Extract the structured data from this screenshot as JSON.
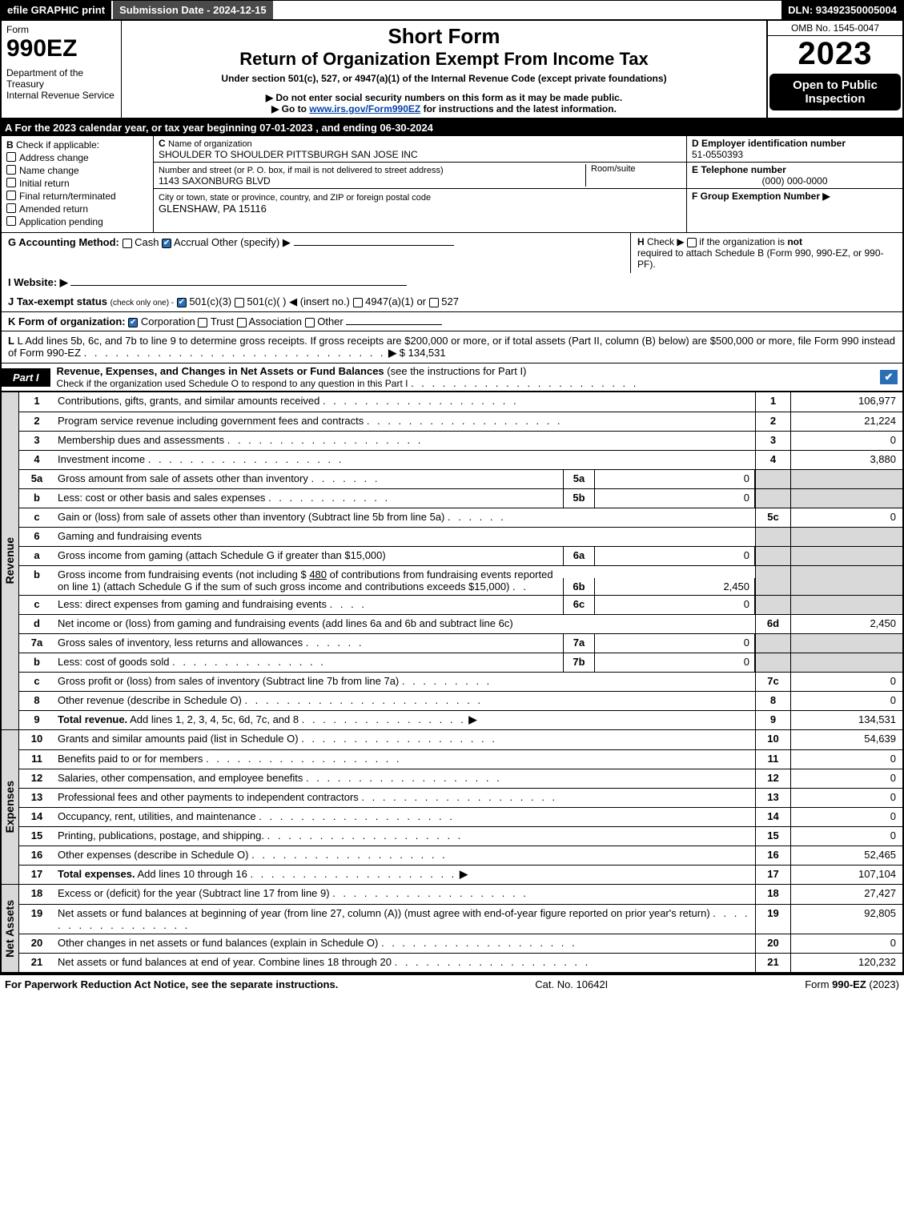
{
  "topbar": {
    "efile": "efile GRAPHIC print",
    "submission_label": "Submission Date - 2024-12-15",
    "dln": "DLN: 93492350005004"
  },
  "header": {
    "form_word": "Form",
    "form_no": "990EZ",
    "dept": "Department of the Treasury\nInternal Revenue Service",
    "title1": "Short Form",
    "title2": "Return of Organization Exempt From Income Tax",
    "subtitle": "Under section 501(c), 527, or 4947(a)(1) of the Internal Revenue Code (except private foundations)",
    "warn1": "▶ Do not enter social security numbers on this form as it may be made public.",
    "warn2_pre": "▶ Go to ",
    "warn2_link": "www.irs.gov/Form990EZ",
    "warn2_post": " for instructions and the latest information.",
    "omb": "OMB No. 1545-0047",
    "year": "2023",
    "open": "Open to Public Inspection"
  },
  "secA": "A  For the 2023 calendar year, or tax year beginning 07-01-2023  , and ending 06-30-2024",
  "boxB": {
    "label": "B",
    "sub": "Check if applicable:",
    "opts": [
      "Address change",
      "Name change",
      "Initial return",
      "Final return/terminated",
      "Amended return",
      "Application pending"
    ]
  },
  "boxC": {
    "c_label": "C",
    "c_sub": "Name of organization",
    "org": "SHOULDER TO SHOULDER PITTSBURGH SAN JOSE INC",
    "addr_label": "Number and street (or P. O. box, if mail is not delivered to street address)",
    "room": "Room/suite",
    "addr": "1143 SAXONBURG BLVD",
    "city_label": "City or town, state or province, country, and ZIP or foreign postal code",
    "city": "GLENSHAW, PA  15116"
  },
  "boxD": {
    "d_label": "D Employer identification number",
    "ein": "51-0550393",
    "e_label": "E Telephone number",
    "phone": "(000) 000-0000",
    "f_label": "F Group Exemption Number",
    "f_arrow": "▶"
  },
  "rowG": {
    "label": "G Accounting Method:",
    "cash": "Cash",
    "accrual": "Accrual",
    "other": "Other (specify) ▶"
  },
  "rowH": {
    "h": "H",
    "text1": "Check ▶",
    "text2": "if the organization is ",
    "not": "not",
    "text3": "required to attach Schedule B (Form 990, 990-EZ, or 990-PF)."
  },
  "rowI": {
    "label": "I Website: ▶"
  },
  "rowJ": {
    "label": "J Tax-exempt status",
    "hint": "(check only one) -",
    "o1": "501(c)(3)",
    "o2": "501(c)(  )",
    "o2b": "◀ (insert no.)",
    "o3": "4947(a)(1) or",
    "o4": "527"
  },
  "rowK": {
    "label": "K Form of organization:",
    "o1": "Corporation",
    "o2": "Trust",
    "o3": "Association",
    "o4": "Other"
  },
  "rowL": {
    "text": "L Add lines 5b, 6c, and 7b to line 9 to determine gross receipts. If gross receipts are $200,000 or more, or if total assets (Part II, column (B) below) are $500,000 or more, file Form 990 instead of Form 990-EZ",
    "dots": ". . . . . . . . . . . . . . . . . . . . . . . . . . . . .",
    "arrow": "▶",
    "val": "$ 134,531"
  },
  "part1": {
    "tag": "Part I",
    "title": "Revenue, Expenses, and Changes in Net Assets or Fund Balances",
    "hint": "(see the instructions for Part I)",
    "sub": "Check if the organization used Schedule O to respond to any question in this Part I",
    "check": "✔"
  },
  "sideLabels": {
    "rev": "Revenue",
    "exp": "Expenses",
    "net": "Net Assets"
  },
  "revenue": [
    {
      "n": "1",
      "d": "Contributions, gifts, grants, and similar amounts received",
      "rn": "1",
      "rv": "106,977"
    },
    {
      "n": "2",
      "d": "Program service revenue including government fees and contracts",
      "rn": "2",
      "rv": "21,224"
    },
    {
      "n": "3",
      "d": "Membership dues and assessments",
      "rn": "3",
      "rv": "0"
    },
    {
      "n": "4",
      "d": "Investment income",
      "rn": "4",
      "rv": "3,880"
    }
  ],
  "line5a": {
    "n": "5a",
    "d": "Gross amount from sale of assets other than inventory",
    "sn": "5a",
    "sv": "0"
  },
  "line5b": {
    "n": "b",
    "d": "Less: cost or other basis and sales expenses",
    "sn": "5b",
    "sv": "0"
  },
  "line5c": {
    "n": "c",
    "d": "Gain or (loss) from sale of assets other than inventory (Subtract line 5b from line 5a)",
    "rn": "5c",
    "rv": "0"
  },
  "line6": {
    "n": "6",
    "d": "Gaming and fundraising events"
  },
  "line6a": {
    "n": "a",
    "d": "Gross income from gaming (attach Schedule G if greater than $15,000)",
    "sn": "6a",
    "sv": "0"
  },
  "line6b": {
    "n": "b",
    "d1": "Gross income from fundraising events (not including $ ",
    "u": "480",
    "d2": " of contributions from fundraising events reported on line 1) (attach Schedule G if the sum of such gross income and contributions exceeds $15,000)",
    "sn": "6b",
    "sv": "2,450"
  },
  "line6c": {
    "n": "c",
    "d": "Less: direct expenses from gaming and fundraising events",
    "sn": "6c",
    "sv": "0"
  },
  "line6d": {
    "n": "d",
    "d": "Net income or (loss) from gaming and fundraising events (add lines 6a and 6b and subtract line 6c)",
    "rn": "6d",
    "rv": "2,450"
  },
  "line7a": {
    "n": "7a",
    "d": "Gross sales of inventory, less returns and allowances",
    "sn": "7a",
    "sv": "0"
  },
  "line7b": {
    "n": "b",
    "d": "Less: cost of goods sold",
    "sn": "7b",
    "sv": "0"
  },
  "line7c": {
    "n": "c",
    "d": "Gross profit or (loss) from sales of inventory (Subtract line 7b from line 7a)",
    "rn": "7c",
    "rv": "0"
  },
  "line8": {
    "n": "8",
    "d": "Other revenue (describe in Schedule O)",
    "rn": "8",
    "rv": "0"
  },
  "line9": {
    "n": "9",
    "d": "Total revenue.",
    "d2": " Add lines 1, 2, 3, 4, 5c, 6d, 7c, and 8",
    "rn": "9",
    "rv": "134,531"
  },
  "expenses": [
    {
      "n": "10",
      "d": "Grants and similar amounts paid (list in Schedule O)",
      "rn": "10",
      "rv": "54,639"
    },
    {
      "n": "11",
      "d": "Benefits paid to or for members",
      "rn": "11",
      "rv": "0"
    },
    {
      "n": "12",
      "d": "Salaries, other compensation, and employee benefits",
      "rn": "12",
      "rv": "0"
    },
    {
      "n": "13",
      "d": "Professional fees and other payments to independent contractors",
      "rn": "13",
      "rv": "0"
    },
    {
      "n": "14",
      "d": "Occupancy, rent, utilities, and maintenance",
      "rn": "14",
      "rv": "0"
    },
    {
      "n": "15",
      "d": "Printing, publications, postage, and shipping.",
      "rn": "15",
      "rv": "0"
    },
    {
      "n": "16",
      "d": "Other expenses (describe in Schedule O)",
      "rn": "16",
      "rv": "52,465"
    }
  ],
  "line17": {
    "n": "17",
    "d": "Total expenses.",
    "d2": " Add lines 10 through 16",
    "rn": "17",
    "rv": "107,104"
  },
  "net": [
    {
      "n": "18",
      "d": "Excess or (deficit) for the year (Subtract line 17 from line 9)",
      "rn": "18",
      "rv": "27,427"
    },
    {
      "n": "19",
      "d": "Net assets or fund balances at beginning of year (from line 27, column (A)) (must agree with end-of-year figure reported on prior year's return)",
      "rn": "19",
      "rv": "92,805"
    },
    {
      "n": "20",
      "d": "Other changes in net assets or fund balances (explain in Schedule O)",
      "rn": "20",
      "rv": "0"
    },
    {
      "n": "21",
      "d": "Net assets or fund balances at end of year. Combine lines 18 through 20",
      "rn": "21",
      "rv": "120,232"
    }
  ],
  "footer": {
    "left": "For Paperwork Reduction Act Notice, see the separate instructions.",
    "mid": "Cat. No. 10642I",
    "right_pre": "Form ",
    "right_b": "990-EZ",
    "right_post": " (2023)"
  },
  "colors": {
    "black": "#000000",
    "white": "#ffffff",
    "grey": "#d9d9d9",
    "blue": "#2a6fb5",
    "link": "#0645ad"
  }
}
